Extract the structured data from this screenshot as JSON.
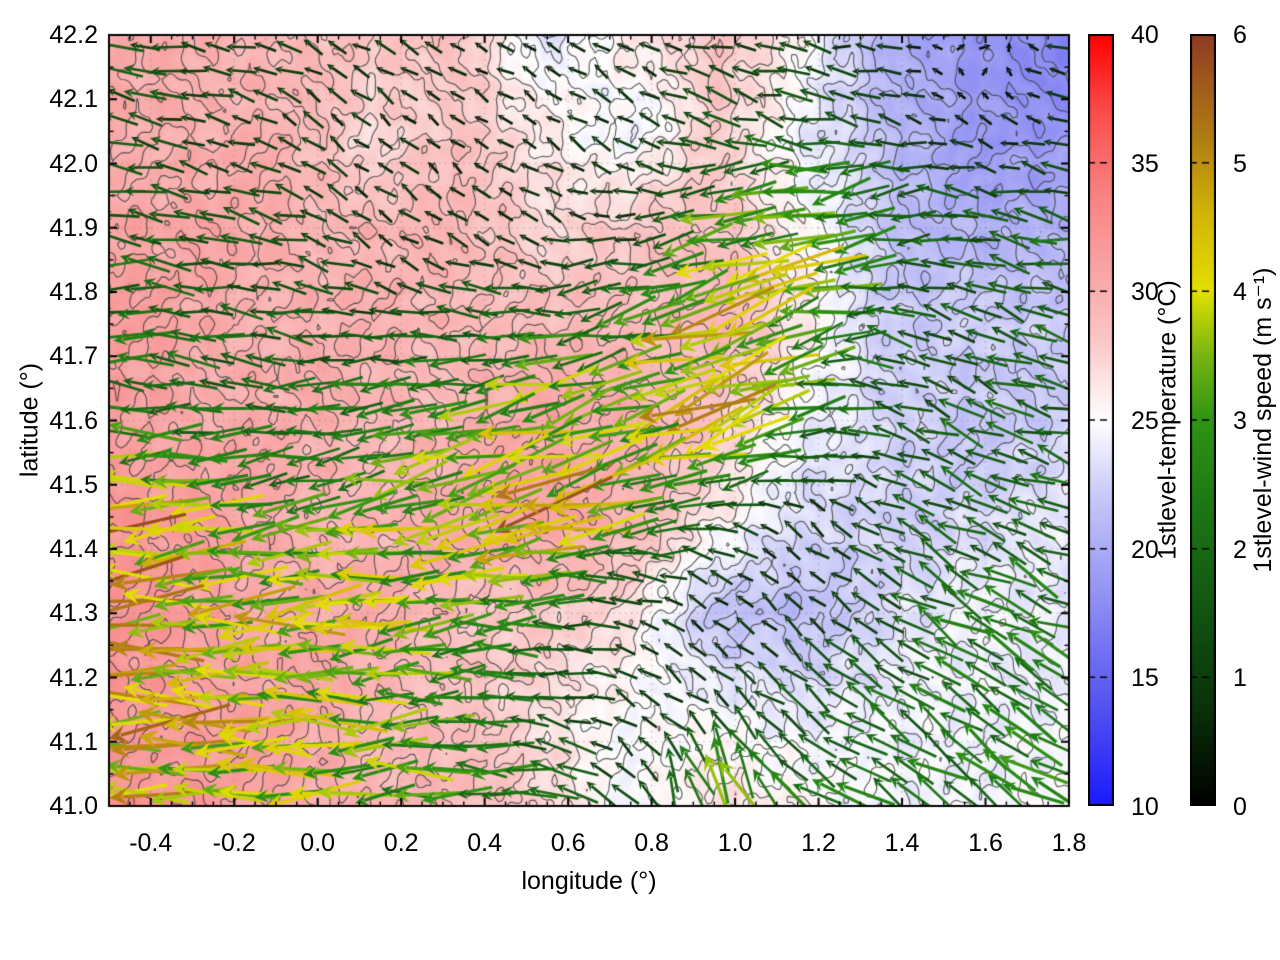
{
  "figure": {
    "background": "#ffffff",
    "border_color": "#000000",
    "contour_color": "#3f3f3f",
    "grid_color": "rgba(125,125,125,0.4)",
    "text_color": "#000000"
  },
  "chart_data": {
    "type": "heatmap",
    "subtype": "heatmap+contour+quiver",
    "title": "",
    "xlabel": "longitude (°)",
    "ylabel": "latitude (°)",
    "xlim": [
      -0.5,
      1.8
    ],
    "ylim": [
      41.0,
      42.2
    ],
    "x_tick_labels": [
      "-0.4",
      "-0.2",
      "0.0",
      "0.2",
      "0.4",
      "0.6",
      "0.8",
      "1.0",
      "1.2",
      "1.4",
      "1.6",
      "1.8"
    ],
    "y_tick_labels": [
      "41.0",
      "41.1",
      "41.2",
      "41.3",
      "41.4",
      "41.5",
      "41.6",
      "41.7",
      "41.8",
      "41.9",
      "42.0",
      "42.1",
      "42.2"
    ],
    "x_minor_step": 0.05,
    "y_minor_step": 0.05,
    "grid": "dotted",
    "legend_position": "right-colorbars",
    "temperature": {
      "label": "1stlevel-temperature (°C)",
      "units": "°C",
      "range": [
        10,
        40
      ],
      "tick_labels": [
        "10",
        "15",
        "20",
        "25",
        "30",
        "35",
        "40"
      ],
      "colormap": [
        [
          10,
          "#1a1aff"
        ],
        [
          14,
          "#5555f0"
        ],
        [
          18,
          "#8f8ff4"
        ],
        [
          22,
          "#c8c8f8"
        ],
        [
          25,
          "#ffffff"
        ],
        [
          28,
          "#fbc9c9"
        ],
        [
          31,
          "#f9a2a2"
        ],
        [
          34,
          "#f97f7f"
        ],
        [
          37,
          "#fb4b4b"
        ],
        [
          40,
          "#ff0000"
        ]
      ],
      "grid_nx": 12,
      "grid_ny": 9,
      "values": [
        [
          30.0,
          30.0,
          29.5,
          28.0,
          29.0,
          23.0,
          26.5,
          28.5,
          25.0,
          20.5,
          18.0,
          17.5
        ],
        [
          30.5,
          30.0,
          29.5,
          27.0,
          28.5,
          26.0,
          24.0,
          28.0,
          24.0,
          21.0,
          19.0,
          18.5
        ],
        [
          31.0,
          30.5,
          30.0,
          29.5,
          29.0,
          27.5,
          28.0,
          28.5,
          25.5,
          21.5,
          20.5,
          20.0
        ],
        [
          31.0,
          30.5,
          30.0,
          29.5,
          29.5,
          29.0,
          29.0,
          29.5,
          26.0,
          22.5,
          22.0,
          22.5
        ],
        [
          31.5,
          30.5,
          30.0,
          29.5,
          29.5,
          30.5,
          30.0,
          28.0,
          24.5,
          22.5,
          22.0,
          22.5
        ],
        [
          32.5,
          31.0,
          30.0,
          29.5,
          30.0,
          31.5,
          29.5,
          26.0,
          23.0,
          22.5,
          23.0,
          23.5
        ],
        [
          32.0,
          31.0,
          30.5,
          30.0,
          29.0,
          28.0,
          26.5,
          21.5,
          21.0,
          23.5,
          24.0,
          24.0
        ],
        [
          32.0,
          31.5,
          30.5,
          29.5,
          28.5,
          26.5,
          25.0,
          24.5,
          24.0,
          24.0,
          24.5,
          24.5
        ],
        [
          32.5,
          31.5,
          30.5,
          30.0,
          29.0,
          27.5,
          24.5,
          26.5,
          25.5,
          24.5,
          24.5,
          24.5
        ]
      ]
    },
    "wind": {
      "label": "1stlevel-wind speed (m s⁻¹)",
      "units": "m s⁻¹",
      "range": [
        0,
        6
      ],
      "tick_labels": [
        "0",
        "1",
        "2",
        "3",
        "4",
        "5",
        "6"
      ],
      "colormap": [
        [
          0,
          "#000000"
        ],
        [
          0.8,
          "#0a340a"
        ],
        [
          1.6,
          "#125812"
        ],
        [
          2.4,
          "#1e7a14"
        ],
        [
          3.0,
          "#2f9413"
        ],
        [
          3.5,
          "#77b512"
        ],
        [
          4.0,
          "#e3e000"
        ],
        [
          4.6,
          "#d2b408"
        ],
        [
          5.2,
          "#b07c14"
        ],
        [
          6,
          "#8f3a23"
        ]
      ],
      "grid_nx": 12,
      "grid_ny": 9,
      "u": [
        [
          -1.5,
          -1.2,
          -0.8,
          -0.6,
          -0.5,
          -0.4,
          -0.5,
          -0.8,
          -0.8,
          -0.7,
          0.5,
          -0.8
        ],
        [
          -1.5,
          -1.0,
          -0.7,
          -0.5,
          -0.4,
          -0.4,
          -0.6,
          -1.2,
          -1.5,
          -0.8,
          -0.5,
          -0.6
        ],
        [
          -1.8,
          -1.5,
          -1.0,
          -0.6,
          -0.5,
          -0.6,
          -0.8,
          -2.8,
          -3.5,
          -2.0,
          -1.5,
          -1.8
        ],
        [
          -2.0,
          -1.8,
          -1.5,
          -1.2,
          -1.5,
          -2.0,
          -2.5,
          -3.8,
          -3.0,
          -1.5,
          -1.2,
          -1.5
        ],
        [
          -2.5,
          -2.0,
          -1.8,
          -2.5,
          -3.0,
          -3.5,
          -3.0,
          -4.5,
          -2.0,
          -1.5,
          -1.5,
          -1.8
        ],
        [
          -4.5,
          -3.5,
          -2.5,
          -3.0,
          -3.8,
          -4.5,
          -3.0,
          -1.0,
          -0.5,
          -1.2,
          -1.5,
          -1.8
        ],
        [
          -4.5,
          -4.0,
          -3.8,
          -3.5,
          -3.0,
          -2.0,
          -0.8,
          -0.4,
          -0.5,
          -1.2,
          -1.8,
          -2.0
        ],
        [
          -4.0,
          -4.2,
          -3.8,
          -3.2,
          -2.5,
          -1.5,
          -0.5,
          -0.8,
          -1.2,
          -1.5,
          -1.8,
          -2.0
        ],
        [
          -4.5,
          -4.0,
          -3.5,
          -3.0,
          -2.8,
          -1.8,
          -0.8,
          -1.0,
          -1.8,
          -1.8,
          -2.0,
          -2.2
        ]
      ],
      "v": [
        [
          0.3,
          0.2,
          0.3,
          0.4,
          0.3,
          0.2,
          0.3,
          0.2,
          0.1,
          0.1,
          0.1,
          0.2
        ],
        [
          0.3,
          0.3,
          0.4,
          0.4,
          0.3,
          0.3,
          0.4,
          0.5,
          0.3,
          0.2,
          0.2,
          0.2
        ],
        [
          0.2,
          0.2,
          0.3,
          0.4,
          0.4,
          0.3,
          0.0,
          -0.8,
          -1.0,
          -0.5,
          0.3,
          0.3
        ],
        [
          0.2,
          0.1,
          0.2,
          0.3,
          0.2,
          -0.3,
          -0.6,
          -1.2,
          -0.8,
          0.5,
          0.5,
          0.4
        ],
        [
          0.0,
          0.0,
          -0.2,
          -0.5,
          -0.8,
          -1.0,
          -0.8,
          -1.8,
          -0.5,
          0.6,
          0.6,
          0.5
        ],
        [
          -0.3,
          -0.3,
          -0.4,
          -0.6,
          -0.8,
          -1.0,
          -0.5,
          0.3,
          0.4,
          0.6,
          0.7,
          0.6
        ],
        [
          -0.2,
          -0.1,
          -0.2,
          -0.3,
          -0.3,
          0.0,
          0.4,
          0.4,
          0.5,
          0.8,
          1.0,
          0.9
        ],
        [
          0.0,
          -0.1,
          -0.1,
          -0.2,
          0.0,
          0.2,
          0.4,
          0.6,
          0.9,
          1.1,
          1.2,
          1.1
        ],
        [
          0.1,
          0.0,
          0.0,
          -0.1,
          0.1,
          0.3,
          1.0,
          3.5,
          1.0,
          1.2,
          1.2,
          1.2
        ]
      ]
    },
    "contours": {
      "start": 18,
      "end": 33,
      "interval": 1
    }
  }
}
